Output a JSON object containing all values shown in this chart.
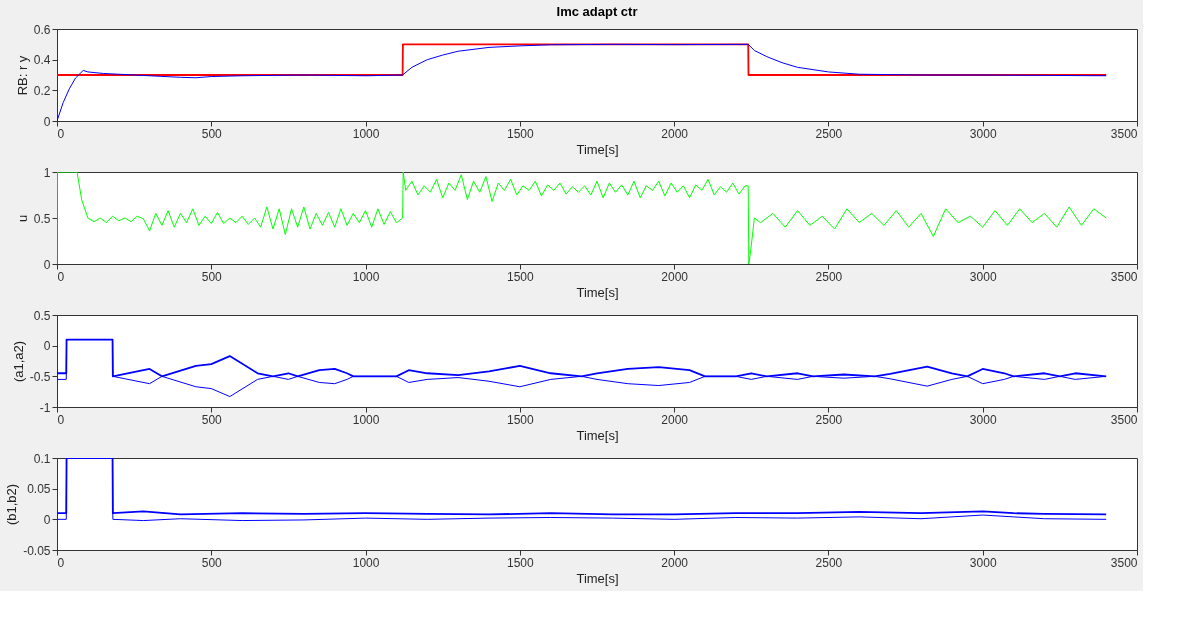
{
  "chart_data": [
    {
      "type": "line",
      "title": "Imc adapt ctr",
      "xlabel": "Time[s]",
      "ylabel": "RB: r y",
      "xlim": [
        0,
        3500
      ],
      "xticks": [
        0,
        500,
        1000,
        1500,
        2000,
        2500,
        3000,
        3500
      ],
      "ylim": [
        0,
        0.6
      ],
      "yticks": [
        0,
        0.2,
        0.4,
        0.6
      ],
      "grid": false,
      "series": [
        {
          "color": "#ff0000",
          "x": [
            0,
            1120,
            1121,
            2240,
            2241,
            3400
          ],
          "values": [
            0.3,
            0.3,
            0.5,
            0.5,
            0.3,
            0.3
          ]
        },
        {
          "color": "#0000ff",
          "x": [
            0,
            20,
            40,
            60,
            85,
            100,
            150,
            250,
            400,
            450,
            500,
            600,
            800,
            1000,
            1120,
            1150,
            1200,
            1250,
            1300,
            1400,
            1500,
            1600,
            1800,
            2000,
            2240,
            2260,
            2300,
            2350,
            2400,
            2500,
            2600,
            2800,
            3000,
            3400
          ],
          "values": [
            0,
            0.12,
            0.21,
            0.28,
            0.33,
            0.32,
            0.31,
            0.3,
            0.285,
            0.282,
            0.29,
            0.295,
            0.3,
            0.295,
            0.3,
            0.35,
            0.4,
            0.43,
            0.455,
            0.48,
            0.49,
            0.497,
            0.5,
            0.498,
            0.5,
            0.46,
            0.42,
            0.38,
            0.35,
            0.32,
            0.305,
            0.3,
            0.3,
            0.295
          ]
        }
      ]
    },
    {
      "type": "line",
      "xlabel": "Time[s]",
      "ylabel": "u",
      "xlim": [
        0,
        3500
      ],
      "xticks": [
        0,
        500,
        1000,
        1500,
        2000,
        2500,
        3000,
        3500
      ],
      "ylim": [
        0,
        1
      ],
      "yticks": [
        0,
        0.5,
        1
      ],
      "grid": false,
      "series": [
        {
          "color": "#00ff00",
          "x": [
            0,
            1,
            65,
            80,
            100,
            120,
            140,
            160,
            180,
            200,
            220,
            240,
            260,
            280,
            300,
            320,
            340,
            360,
            380,
            400,
            420,
            440,
            460,
            480,
            500,
            520,
            540,
            560,
            580,
            600,
            620,
            640,
            660,
            680,
            700,
            720,
            740,
            760,
            780,
            800,
            820,
            840,
            860,
            880,
            900,
            920,
            940,
            960,
            980,
            1000,
            1020,
            1040,
            1060,
            1080,
            1100,
            1120,
            1122,
            1130,
            1150,
            1170,
            1190,
            1210,
            1230,
            1250,
            1270,
            1290,
            1310,
            1330,
            1350,
            1370,
            1390,
            1410,
            1430,
            1450,
            1470,
            1490,
            1510,
            1530,
            1550,
            1570,
            1590,
            1610,
            1630,
            1650,
            1670,
            1690,
            1710,
            1730,
            1750,
            1770,
            1790,
            1810,
            1830,
            1850,
            1870,
            1890,
            1910,
            1930,
            1950,
            1970,
            1990,
            2010,
            2030,
            2050,
            2070,
            2090,
            2110,
            2130,
            2150,
            2170,
            2190,
            2210,
            2230,
            2240,
            2242,
            2250,
            2260,
            2280,
            2320,
            2360,
            2400,
            2440,
            2480,
            2520,
            2560,
            2600,
            2640,
            2680,
            2720,
            2760,
            2800,
            2840,
            2880,
            2920,
            2960,
            3000,
            3040,
            3080,
            3120,
            3160,
            3200,
            3240,
            3280,
            3320,
            3360,
            3400
          ],
          "values": [
            0,
            1,
            1,
            0.7,
            0.5,
            0.46,
            0.5,
            0.45,
            0.52,
            0.47,
            0.5,
            0.46,
            0.52,
            0.49,
            0.36,
            0.55,
            0.42,
            0.58,
            0.4,
            0.55,
            0.45,
            0.6,
            0.42,
            0.52,
            0.44,
            0.56,
            0.44,
            0.5,
            0.45,
            0.52,
            0.43,
            0.5,
            0.4,
            0.62,
            0.38,
            0.6,
            0.32,
            0.6,
            0.4,
            0.62,
            0.38,
            0.55,
            0.42,
            0.56,
            0.4,
            0.6,
            0.42,
            0.55,
            0.45,
            0.58,
            0.4,
            0.6,
            0.43,
            0.57,
            0.45,
            0.5,
            1,
            0.8,
            0.9,
            0.75,
            0.85,
            0.78,
            0.92,
            0.72,
            0.88,
            0.8,
            0.97,
            0.7,
            0.9,
            0.78,
            0.95,
            0.68,
            0.88,
            0.8,
            0.92,
            0.75,
            0.85,
            0.8,
            0.9,
            0.74,
            0.86,
            0.8,
            0.88,
            0.76,
            0.84,
            0.78,
            0.85,
            0.75,
            0.9,
            0.72,
            0.88,
            0.78,
            0.86,
            0.75,
            0.9,
            0.72,
            0.85,
            0.8,
            0.9,
            0.74,
            0.88,
            0.78,
            0.85,
            0.72,
            0.86,
            0.8,
            0.92,
            0.75,
            0.84,
            0.78,
            0.88,
            0.76,
            0.85,
            0.85,
            0,
            0.2,
            0.5,
            0.45,
            0.55,
            0.4,
            0.58,
            0.42,
            0.52,
            0.38,
            0.6,
            0.45,
            0.55,
            0.42,
            0.58,
            0.4,
            0.55,
            0.3,
            0.6,
            0.45,
            0.52,
            0.4,
            0.58,
            0.42,
            0.6,
            0.45,
            0.55,
            0.4,
            0.62,
            0.42,
            0.6,
            0.5
          ]
        }
      ]
    },
    {
      "type": "line",
      "xlabel": "Time[s]",
      "ylabel": "(a1,a2)",
      "xlim": [
        0,
        3500
      ],
      "xticks": [
        0,
        500,
        1000,
        1500,
        2000,
        2500,
        3000,
        3500
      ],
      "ylim": [
        -1,
        0.5
      ],
      "yticks": [
        -1,
        -0.5,
        0,
        0.5
      ],
      "grid": false,
      "series": [
        {
          "color": "#0000ff",
          "x": [
            0,
            30,
            31,
            180,
            181,
            300,
            340,
            450,
            500,
            560,
            650,
            700,
            750,
            780,
            850,
            900,
            940,
            960,
            1100,
            1140,
            1200,
            1300,
            1400,
            1500,
            1600,
            1700,
            1750,
            1850,
            1950,
            2050,
            2100,
            2200,
            2250,
            2300,
            2400,
            2450,
            2550,
            2650,
            2700,
            2820,
            2900,
            2950,
            3000,
            3070,
            3100,
            3200,
            3250,
            3300,
            3400
          ],
          "values": [
            -0.45,
            -0.45,
            0.1,
            0.1,
            -0.5,
            -0.38,
            -0.5,
            -0.33,
            -0.3,
            -0.17,
            -0.45,
            -0.5,
            -0.45,
            -0.5,
            -0.4,
            -0.38,
            -0.45,
            -0.5,
            -0.5,
            -0.4,
            -0.45,
            -0.48,
            -0.42,
            -0.33,
            -0.45,
            -0.5,
            -0.45,
            -0.38,
            -0.35,
            -0.4,
            -0.5,
            -0.5,
            -0.45,
            -0.5,
            -0.45,
            -0.5,
            -0.47,
            -0.5,
            -0.46,
            -0.34,
            -0.45,
            -0.5,
            -0.38,
            -0.45,
            -0.5,
            -0.45,
            -0.5,
            -0.45,
            -0.5
          ]
        },
        {
          "color": "#0000ff",
          "x": [
            0,
            30,
            31,
            180,
            181,
            300,
            340,
            450,
            500,
            560,
            650,
            700,
            750,
            780,
            850,
            900,
            940,
            960,
            1100,
            1140,
            1200,
            1300,
            1400,
            1500,
            1600,
            1700,
            1750,
            1850,
            1950,
            2050,
            2100,
            2200,
            2250,
            2300,
            2400,
            2450,
            2550,
            2650,
            2700,
            2820,
            2900,
            2950,
            3000,
            3070,
            3100,
            3200,
            3250,
            3300,
            3400
          ],
          "values": [
            -0.55,
            -0.55,
            0.1,
            0.1,
            -0.5,
            -0.62,
            -0.5,
            -0.67,
            -0.7,
            -0.83,
            -0.55,
            -0.5,
            -0.55,
            -0.5,
            -0.6,
            -0.62,
            -0.55,
            -0.5,
            -0.5,
            -0.6,
            -0.55,
            -0.52,
            -0.58,
            -0.67,
            -0.55,
            -0.5,
            -0.55,
            -0.62,
            -0.65,
            -0.6,
            -0.5,
            -0.5,
            -0.55,
            -0.5,
            -0.55,
            -0.5,
            -0.53,
            -0.5,
            -0.54,
            -0.66,
            -0.55,
            -0.5,
            -0.62,
            -0.55,
            -0.5,
            -0.55,
            -0.5,
            -0.55,
            -0.5
          ]
        }
      ]
    },
    {
      "type": "line",
      "xlabel": "Time[s]",
      "ylabel": "(b1,b2)",
      "xlim": [
        0,
        3500
      ],
      "xticks": [
        0,
        500,
        1000,
        1500,
        2000,
        2500,
        3000,
        3500
      ],
      "ylim": [
        -0.05,
        0.1
      ],
      "yticks": [
        -0.05,
        0,
        0.05,
        0.1
      ],
      "grid": false,
      "series": [
        {
          "color": "#0000ff",
          "x": [
            0,
            30,
            31,
            180,
            181,
            280,
            400,
            600,
            800,
            1000,
            1200,
            1400,
            1600,
            1800,
            2000,
            2200,
            2400,
            2600,
            2800,
            3000,
            3100,
            3200,
            3400
          ],
          "values": [
            0.01,
            0.01,
            0.1,
            0.1,
            0.01,
            0.013,
            0.008,
            0.01,
            0.009,
            0.01,
            0.009,
            0.008,
            0.01,
            0.008,
            0.008,
            0.01,
            0.01,
            0.012,
            0.01,
            0.013,
            0.01,
            0.009,
            0.008
          ]
        },
        {
          "color": "#0000ff",
          "x": [
            0,
            30,
            31,
            180,
            181,
            280,
            400,
            600,
            800,
            1000,
            1200,
            1400,
            1600,
            1800,
            2000,
            2200,
            2400,
            2600,
            2800,
            3000,
            3100,
            3200,
            3400
          ],
          "values": [
            0,
            0,
            0.1,
            0.1,
            0,
            -0.002,
            0.001,
            -0.002,
            -0.001,
            0.002,
            0,
            0.002,
            0.003,
            0.002,
            0,
            0.003,
            0.002,
            0.004,
            0.001,
            0.007,
            0.004,
            0.001,
            0
          ]
        }
      ]
    }
  ]
}
